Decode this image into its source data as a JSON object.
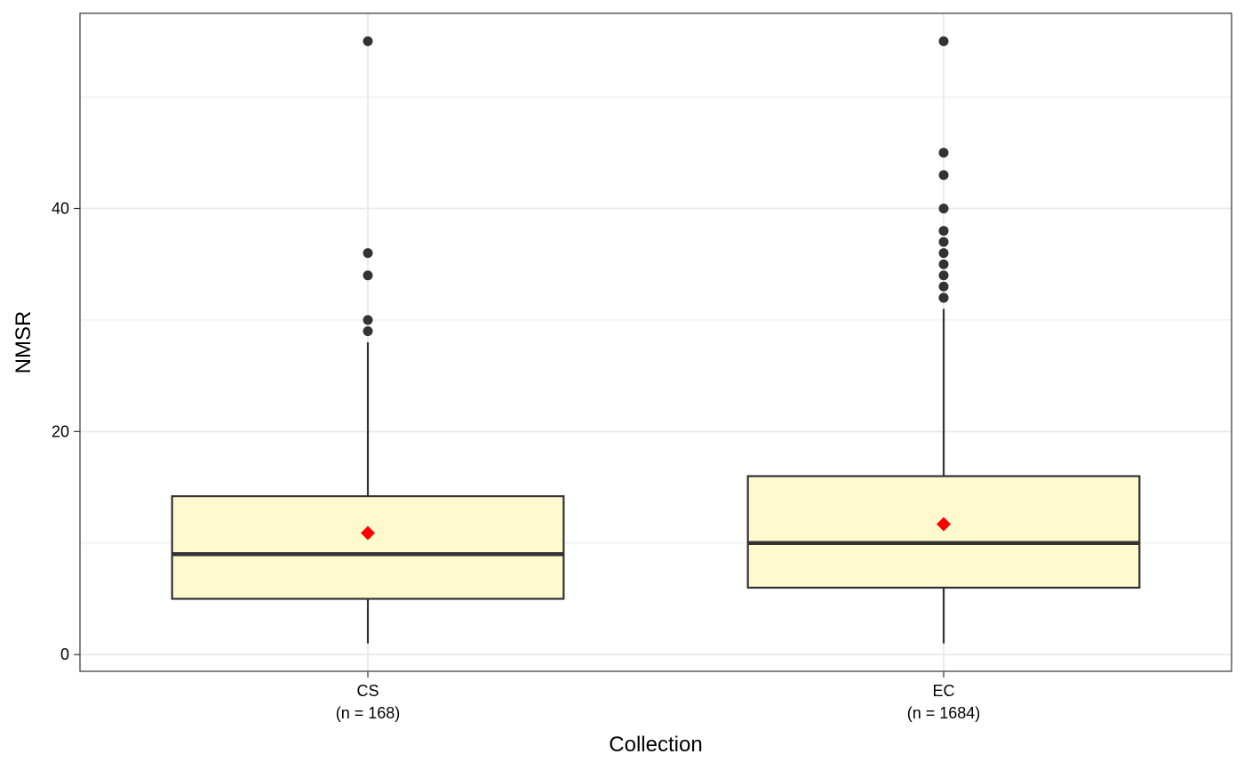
{
  "chart_data": {
    "type": "boxplot",
    "xlabel": "Collection",
    "ylabel": "NMSR",
    "ylim": [
      -1.5,
      57.5
    ],
    "yticks": [
      0,
      20,
      40
    ],
    "minor_yticks": [
      10,
      30,
      50
    ],
    "grid": true,
    "colors": {
      "box_fill": "#FFFACD",
      "box_stroke": "#333333",
      "mean_marker": "#FF0000",
      "grid": "#EBEBEB",
      "outlier": "#333333"
    },
    "groups": [
      {
        "category": "CS",
        "n_label": "(n = 168)",
        "q1": 5,
        "median": 9,
        "q3": 14.2,
        "whisker_low": 1,
        "whisker_high": 28,
        "mean": 10.9,
        "outliers": [
          29,
          30,
          34,
          36,
          55
        ]
      },
      {
        "category": "EC",
        "n_label": "(n = 1684)",
        "q1": 6,
        "median": 10,
        "q3": 16,
        "whisker_low": 1,
        "whisker_high": 31,
        "mean": 11.7,
        "outliers": [
          32,
          32,
          33,
          34,
          35,
          36,
          37,
          38,
          40,
          43,
          45,
          55
        ]
      }
    ]
  }
}
